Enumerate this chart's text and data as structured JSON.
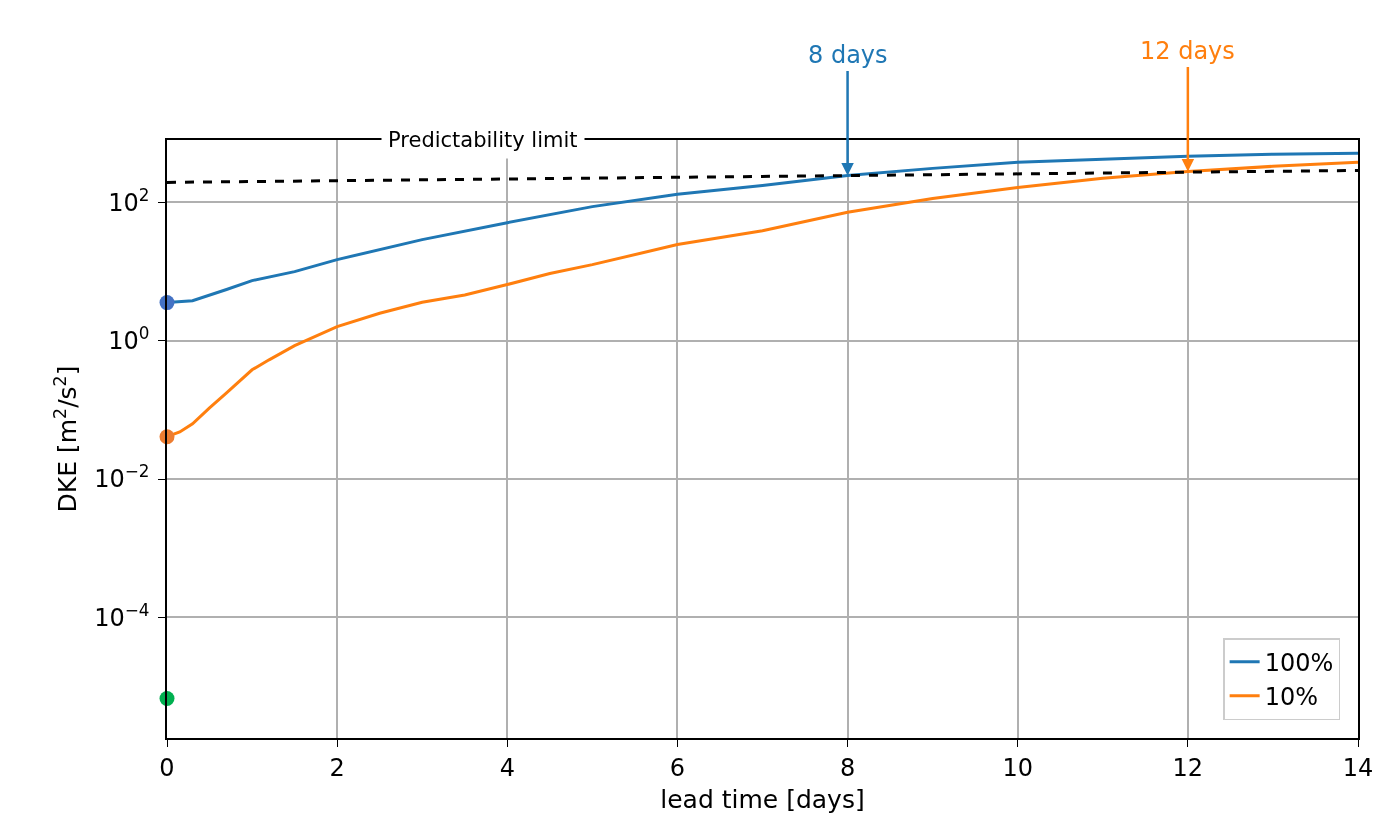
{
  "chart_data": {
    "type": "line",
    "xlabel": "lead time [days]",
    "ylabel": "DKE [m$^{2}$/s$^{2}$]",
    "xlim": [
      0,
      14
    ],
    "xticks": [
      0,
      2,
      4,
      6,
      8,
      10,
      12,
      14
    ],
    "ylim": [
      1.8e-06,
      800
    ],
    "yticks": [
      {
        "value": 0.0001,
        "label": "10$^{−4}$"
      },
      {
        "value": 0.01,
        "label": "10$^{−2}$"
      },
      {
        "value": 1,
        "label": "10$^{0}$"
      },
      {
        "value": 100,
        "label": "10$^{2}$"
      }
    ],
    "log": "y",
    "grid": true,
    "legend": "bottom right",
    "series": [
      {
        "name": "100%",
        "color": "#1f77b4",
        "x": [
          0,
          0.3,
          0.7,
          1,
          1.5,
          2,
          3,
          4,
          5,
          6,
          7,
          8,
          9,
          10,
          11,
          12,
          13,
          14
        ],
        "values": [
          3.56,
          3.8,
          5.5,
          7.4,
          10,
          14.9,
          29,
          51,
          87,
          131,
          176,
          246,
          311,
          380,
          420,
          464,
          497,
          513
        ]
      },
      {
        "name": "10%",
        "color": "#ff7f0e",
        "x": [
          0,
          0.15,
          0.3,
          0.5,
          0.7,
          1,
          1.2,
          1.5,
          2,
          2.5,
          3,
          3.5,
          4,
          4.5,
          5,
          6,
          7,
          8,
          9,
          10,
          11,
          12,
          13,
          14
        ],
        "values": [
          0.041,
          0.048,
          0.063,
          0.107,
          0.176,
          0.38,
          0.53,
          0.85,
          1.6,
          2.5,
          3.6,
          4.6,
          6.5,
          9.4,
          12.6,
          24.6,
          39,
          72,
          114,
          165,
          223,
          281,
          333,
          380
        ]
      },
      {
        "type": "line",
        "color": "#000000",
        "line_style": "dashed",
        "x": [
          0,
          14
        ],
        "values": [
          195,
          290
        ]
      },
      {
        "type": "scatter",
        "marker": "circle",
        "x": [
          0,
          0,
          0
        ],
        "values": [
          3.56,
          0.041,
          6.7e-06
        ],
        "colors": [
          "#4472c4",
          "#ed7d31",
          "#00b050"
        ]
      }
    ],
    "annotations": [
      "Predictability limit",
      {
        "text": "8 days",
        "x": 8,
        "y": 246
      },
      {
        "text": "12 days",
        "x": 12,
        "y": 281
      }
    ]
  }
}
